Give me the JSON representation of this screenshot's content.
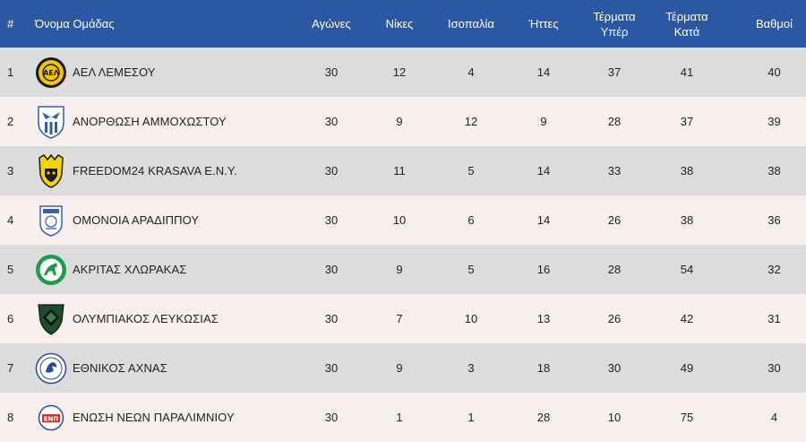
{
  "header": {
    "rank": "#",
    "team": "Όνομα Ομάδας",
    "played": "Αγώνες",
    "wins": "Νίκες",
    "draws": "Ισοπαλία",
    "losses": "Ήττες",
    "goals_for_line1": "Τέρματα",
    "goals_for_line2": "Υπέρ",
    "goals_against_line1": "Τέρματα",
    "goals_against_line2": "Κατά",
    "points": "Βαθμοί"
  },
  "rows": [
    {
      "rank": "1",
      "team": "ΑΕΛ ΛΕΜΕΣΟΥ",
      "logo": "ael-crest-icon",
      "played": "30",
      "wins": "12",
      "draws": "4",
      "losses": "14",
      "gf": "37",
      "ga": "41",
      "pts": "40"
    },
    {
      "rank": "2",
      "team": "ΑΝΟΡΘΩΣΗ ΑΜΜΟΧΩΣΤΟΥ",
      "logo": "anorthosis-crest-icon",
      "played": "30",
      "wins": "9",
      "draws": "12",
      "losses": "9",
      "gf": "28",
      "ga": "37",
      "pts": "39"
    },
    {
      "rank": "3",
      "team": "FREEDOM24 KRASAVA E.N.Y.",
      "logo": "krasava-crest-icon",
      "played": "30",
      "wins": "11",
      "draws": "5",
      "losses": "14",
      "gf": "33",
      "ga": "38",
      "pts": "38"
    },
    {
      "rank": "4",
      "team": "ΟΜΟΝΟΙΑ ΑΡΑΔΙΠΠΟΥ",
      "logo": "omonia-aradippou-crest-icon",
      "played": "30",
      "wins": "10",
      "draws": "6",
      "losses": "14",
      "gf": "26",
      "ga": "38",
      "pts": "36"
    },
    {
      "rank": "5",
      "team": "ΑΚΡΙΤΑΣ ΧΛΩΡΑΚΑΣ",
      "logo": "akritas-crest-icon",
      "played": "30",
      "wins": "9",
      "draws": "5",
      "losses": "16",
      "gf": "28",
      "ga": "54",
      "pts": "32"
    },
    {
      "rank": "6",
      "team": "ΟΛΥΜΠΙΑΚΟΣ ΛΕΥΚΩΣΙΑΣ",
      "logo": "olympiakos-crest-icon",
      "played": "30",
      "wins": "7",
      "draws": "10",
      "losses": "13",
      "gf": "26",
      "ga": "42",
      "pts": "31"
    },
    {
      "rank": "7",
      "team": "ΕΘΝΙΚΟΣ ΑΧΝΑΣ",
      "logo": "ethnikos-crest-icon",
      "played": "30",
      "wins": "9",
      "draws": "3",
      "losses": "18",
      "gf": "30",
      "ga": "49",
      "pts": "30"
    },
    {
      "rank": "8",
      "team": "ΕΝΩΣΗ ΝΕΩΝ ΠΑΡΑΛΙΜΝΙΟΥ",
      "logo": "enp-crest-icon",
      "played": "30",
      "wins": "1",
      "draws": "1",
      "losses": "28",
      "gf": "10",
      "ga": "75",
      "pts": "4"
    }
  ],
  "colors": {
    "header_bg": "#2b57a3",
    "row_odd": "#dcdcdc",
    "row_even": "#f7eeee"
  }
}
